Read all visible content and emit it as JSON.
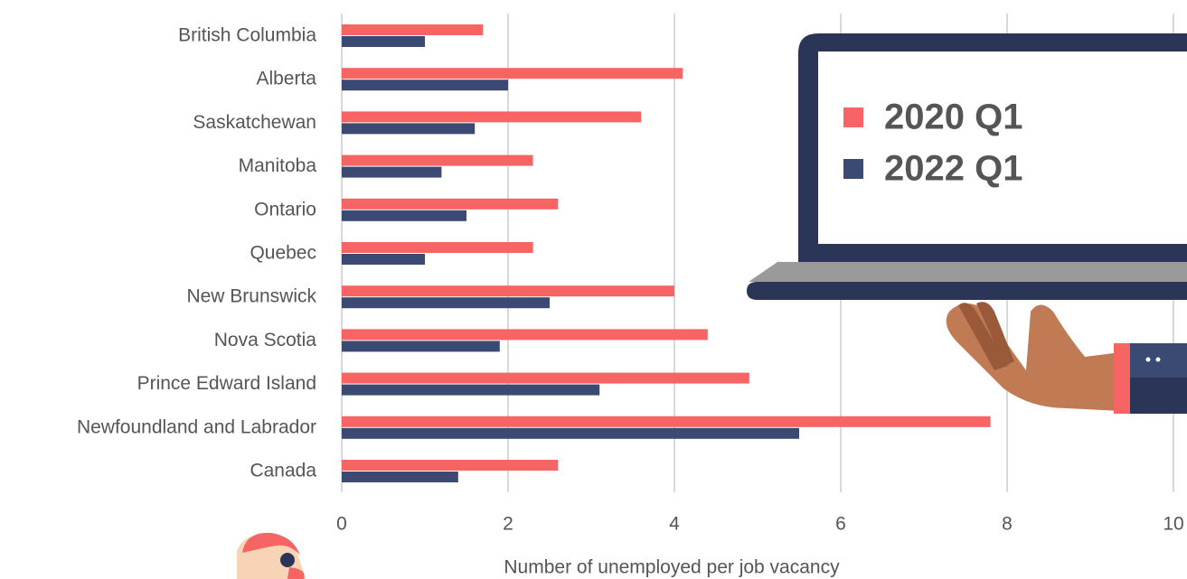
{
  "chart_data": {
    "type": "hbar",
    "x_label": "Number of unemployed per job vacancy",
    "categories": [
      "British Columbia",
      "Alberta",
      "Saskatchewan",
      "Manitoba",
      "Ontario",
      "Quebec",
      "New Brunswick",
      "Nova Scotia",
      "Prince Edward Island",
      "Newfoundland and Labrador",
      "Canada"
    ],
    "series": [
      {
        "name": "2020 Q1",
        "color": "#f76464",
        "values": [
          1.7,
          4.1,
          3.6,
          2.3,
          2.6,
          2.3,
          4.0,
          4.4,
          4.9,
          7.8,
          2.6
        ]
      },
      {
        "name": "2022 Q1",
        "color": "#3a4a72",
        "values": [
          1.0,
          2.0,
          1.6,
          1.2,
          1.5,
          1.0,
          2.5,
          1.9,
          3.1,
          5.5,
          1.4
        ]
      }
    ],
    "xlim": [
      0,
      10
    ],
    "xticks": [
      0,
      2,
      4,
      6,
      8,
      10
    ],
    "grid": true
  }
}
